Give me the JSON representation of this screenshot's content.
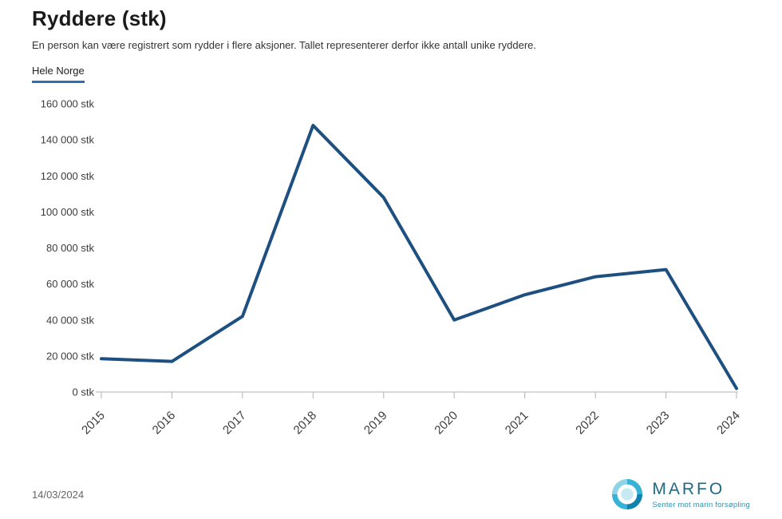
{
  "page": {
    "title": "Ryddere (stk)",
    "subtitle": "En person kan være registrert som rydder i flere aksjoner. Tallet representerer derfor ikke antall unike ryddere.",
    "tab_label": "Hele Norge",
    "footer_date": "14/03/2024"
  },
  "logo": {
    "wordmark": "MARFO",
    "tagline": "Senter mot marin forsøpling"
  },
  "colors": {
    "line": "#1d4f80",
    "tab_underline": "#2f6fb7",
    "axis": "#b3b3b3",
    "tick_text": "#3c3c3c",
    "logo_wordmark": "#1d6a84",
    "logo_tagline": "#2f93b4",
    "logo_petal_light": "#8ed4e6",
    "logo_petal_mid": "#36b3d6",
    "logo_petal_dark": "#0e84ad",
    "logo_center": "#c6e9f2"
  },
  "chart_data": {
    "type": "line",
    "title": "Ryddere (stk)",
    "series_label": "Hele Norge",
    "x": [
      "2015",
      "2016",
      "2017",
      "2018",
      "2019",
      "2020",
      "2021",
      "2022",
      "2023",
      "2024"
    ],
    "values": [
      18500,
      17000,
      42000,
      148000,
      108000,
      40000,
      54000,
      64000,
      68000,
      2000
    ],
    "ylim": [
      0,
      160000
    ],
    "yticks": [
      {
        "value": 0,
        "label": "0 stk"
      },
      {
        "value": 20000,
        "label": "20 000 stk"
      },
      {
        "value": 40000,
        "label": "40 000 stk"
      },
      {
        "value": 60000,
        "label": "60 000 stk"
      },
      {
        "value": 80000,
        "label": "80 000 stk"
      },
      {
        "value": 100000,
        "label": "100 000 stk"
      },
      {
        "value": 120000,
        "label": "120 000 stk"
      },
      {
        "value": 140000,
        "label": "140 000 stk"
      },
      {
        "value": 160000,
        "label": "160 000 stk"
      }
    ],
    "grid": false,
    "legend_position": "none"
  }
}
